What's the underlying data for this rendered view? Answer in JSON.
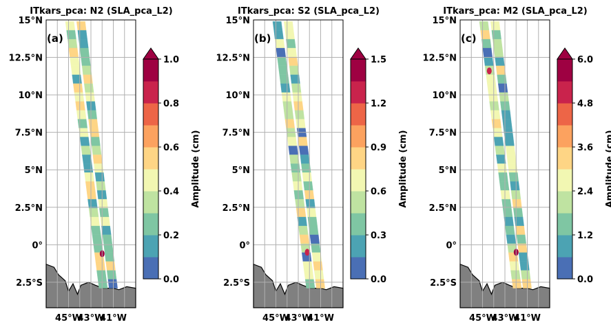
{
  "chart_data": [
    {
      "type": "map",
      "title": "ITkars_pca: N2 (SLA_pca_L2)",
      "panel_label": "(a)",
      "colorbar_label": "Amplitude (cm)",
      "colorbar_ticks": [
        "0.0",
        "0.2",
        "0.4",
        "0.6",
        "0.8",
        "1.0"
      ],
      "colorbar_range": [
        0.0,
        1.0
      ],
      "colorbar_levels": 10,
      "extend": "max",
      "lat_ticks": [
        "15°N",
        "12.5°N",
        "10°N",
        "7.5°N",
        "5°N",
        "2.5°N",
        "0°",
        "2.5°S"
      ],
      "lon_ticks": [
        "45°W",
        "43°W",
        "41°W"
      ],
      "lat_range": [
        -4.2,
        15.0
      ],
      "lon_range": [
        -47.0,
        -39.0
      ],
      "hotspots": [
        {
          "lat": -0.6,
          "lon": -42.0,
          "value": 0.92
        }
      ]
    },
    {
      "type": "map",
      "title": "ITkars_pca: S2 (SLA_pca_L2)",
      "panel_label": "(b)",
      "colorbar_label": "Amplitude (cm)",
      "colorbar_ticks": [
        "0.0",
        "0.3",
        "0.6",
        "0.9",
        "1.2",
        "1.5"
      ],
      "colorbar_range": [
        0.0,
        1.5
      ],
      "colorbar_levels": 10,
      "extend": "max",
      "lat_ticks": [
        "15°N",
        "12.5°N",
        "10°N",
        "7.5°N",
        "5°N",
        "2.5°N",
        "0°",
        "2.5°S"
      ],
      "lon_ticks": [
        "45°W",
        "43°W",
        "41°W"
      ],
      "lat_range": [
        -4.2,
        15.0
      ],
      "lon_range": [
        -47.0,
        -39.0
      ],
      "hotspots": [
        {
          "lat": -0.5,
          "lon": -42.2,
          "value": 1.3
        }
      ]
    },
    {
      "type": "map",
      "title": "ITkars_pca: M2 (SLA_pca_L2)",
      "panel_label": "(c)",
      "colorbar_label": "Amplitude (cm)",
      "colorbar_ticks": [
        "0.0",
        "1.2",
        "2.4",
        "3.6",
        "4.8",
        "6.0"
      ],
      "colorbar_range": [
        0.0,
        6.0
      ],
      "colorbar_levels": 10,
      "extend": "max",
      "lat_ticks": [
        "15°N",
        "12.5°N",
        "10°N",
        "7.5°N",
        "5°N",
        "2.5°N",
        "0°",
        "2.5°S"
      ],
      "lon_ticks": [
        "45°W",
        "43°W",
        "41°W"
      ],
      "lat_range": [
        -4.2,
        15.0
      ],
      "lon_range": [
        -47.0,
        -39.0
      ],
      "hotspots": [
        {
          "lat": -0.5,
          "lon": -42.0,
          "value": 6.0
        },
        {
          "lat": 11.6,
          "lon": -44.4,
          "value": 4.9
        }
      ]
    }
  ],
  "colors": {
    "land": "#808080",
    "grid": "#b0b0b0",
    "colormap": [
      "#4a6fb5",
      "#4ca3b3",
      "#7fc6a3",
      "#bfe3a1",
      "#f2f7b2",
      "#fed585",
      "#fca25f",
      "#ed6547",
      "#c9234c",
      "#9e0142"
    ]
  }
}
